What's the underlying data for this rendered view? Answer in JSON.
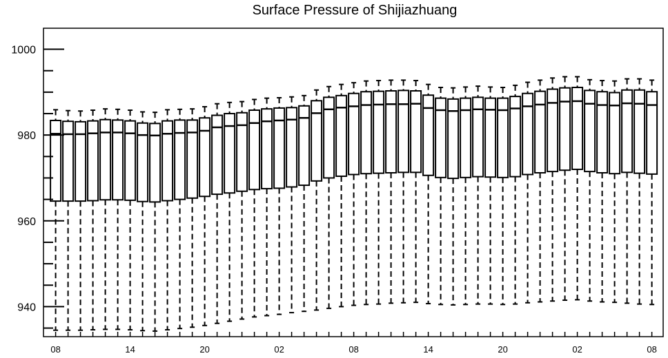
{
  "chart_data": {
    "type": "boxplot",
    "title": "Surface Pressure of Shijiazhuang",
    "xlabel": "",
    "ylabel": "",
    "ylim": [
      933,
      1004
    ],
    "yticks": [
      940,
      960,
      980,
      1000
    ],
    "yticklabels": [
      "940",
      "960",
      "980",
      "1000"
    ],
    "xticklabels": [
      "08",
      "14",
      "20",
      "02",
      "08",
      "14",
      "20",
      "02",
      "08"
    ],
    "xtick_positions": [
      0,
      6,
      12,
      18,
      24,
      30,
      36,
      42,
      48
    ],
    "grid": false,
    "colors": {
      "box_stroke": "#000000",
      "whisker": "#000000",
      "background": "#ffffff"
    },
    "series": [
      {
        "positions": [
          0,
          1,
          2,
          3,
          4,
          5,
          6,
          7,
          8,
          9,
          10,
          11,
          12,
          13,
          14,
          15,
          16,
          17,
          18,
          19,
          20,
          21,
          22,
          23,
          24,
          25,
          26,
          27,
          28,
          29,
          30,
          31,
          32,
          33,
          34,
          35,
          36,
          37,
          38,
          39,
          40,
          41,
          42,
          43,
          44,
          45,
          46,
          47,
          48
        ],
        "whislo": [
          934.5,
          934.5,
          934.5,
          934.6,
          934.7,
          934.7,
          934.6,
          934.4,
          934.3,
          934.6,
          934.9,
          935.2,
          935.6,
          936.1,
          936.6,
          937.1,
          937.6,
          937.9,
          938.2,
          938.6,
          938.9,
          939.2,
          939.6,
          940.0,
          940.3,
          940.5,
          940.6,
          940.8,
          940.9,
          941.0,
          940.7,
          940.5,
          940.4,
          940.5,
          940.6,
          940.6,
          940.5,
          940.6,
          940.9,
          941.1,
          941.3,
          941.5,
          941.6,
          941.3,
          941.1,
          941.0,
          940.8,
          940.6,
          940.5
        ],
        "q1": [
          964.6,
          964.6,
          964.6,
          964.7,
          964.9,
          964.9,
          964.8,
          964.5,
          964.4,
          964.7,
          965.0,
          965.3,
          965.7,
          966.2,
          966.5,
          966.9,
          967.3,
          967.5,
          967.6,
          967.9,
          968.3,
          969.3,
          970.0,
          970.4,
          970.8,
          971.0,
          971.1,
          971.2,
          971.3,
          971.3,
          970.6,
          970.1,
          969.9,
          970.1,
          970.3,
          970.2,
          970.1,
          970.3,
          970.8,
          971.2,
          971.5,
          971.8,
          972.0,
          971.5,
          971.2,
          971.0,
          971.3,
          971.1,
          970.9
        ],
        "med": [
          980.3,
          980.2,
          980.2,
          980.4,
          980.6,
          980.6,
          980.4,
          980.0,
          979.9,
          980.3,
          980.5,
          980.6,
          981.0,
          981.8,
          982.1,
          982.3,
          982.8,
          983.2,
          983.4,
          983.6,
          984.0,
          985.1,
          986.0,
          986.4,
          986.7,
          987.0,
          987.1,
          987.2,
          987.2,
          987.3,
          986.3,
          985.8,
          985.6,
          985.8,
          986.0,
          985.9,
          985.8,
          986.2,
          986.7,
          987.1,
          987.5,
          987.8,
          987.9,
          987.3,
          987.0,
          986.9,
          987.4,
          987.3,
          987.0
        ],
        "q3": [
          983.4,
          983.2,
          983.1,
          983.3,
          983.6,
          983.5,
          983.3,
          982.8,
          982.7,
          983.3,
          983.5,
          983.5,
          984.0,
          984.6,
          985.0,
          985.2,
          985.8,
          986.1,
          986.3,
          986.4,
          986.8,
          988.0,
          988.8,
          989.2,
          989.7,
          990.1,
          990.2,
          990.3,
          990.4,
          990.3,
          989.3,
          988.6,
          988.4,
          988.6,
          988.8,
          988.6,
          988.6,
          989.0,
          989.7,
          990.2,
          990.7,
          991.0,
          991.1,
          990.4,
          990.1,
          989.9,
          990.5,
          990.5,
          990.1
        ],
        "whishi": [
          985.9,
          985.7,
          985.6,
          985.8,
          986.1,
          986.0,
          985.8,
          985.4,
          985.3,
          985.9,
          986.0,
          986.1,
          986.6,
          987.3,
          987.6,
          987.8,
          988.3,
          988.6,
          988.7,
          988.9,
          989.2,
          990.5,
          991.3,
          991.8,
          992.2,
          992.6,
          992.7,
          992.8,
          992.8,
          992.7,
          991.8,
          991.1,
          991.0,
          991.2,
          991.4,
          991.2,
          991.1,
          991.6,
          992.3,
          992.8,
          993.3,
          993.6,
          993.6,
          992.9,
          992.7,
          992.6,
          993.1,
          993.1,
          992.8
        ]
      }
    ]
  }
}
